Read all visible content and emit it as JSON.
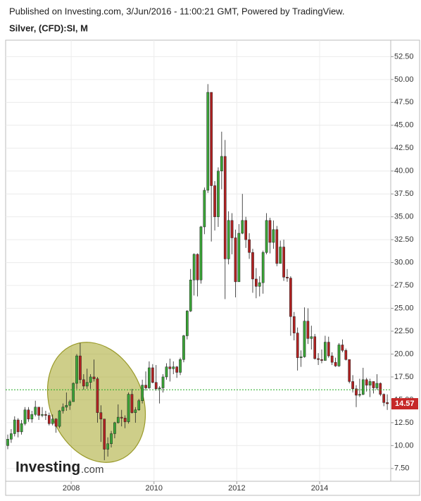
{
  "header": {
    "published": "Published on Investing.com, 3/Jun/2016 - 11:00:21 GMT, Powered by TradingView.",
    "instrument": "Silver, (CFD):SI, M"
  },
  "chart_data": {
    "type": "candlestick",
    "categories": [
      null,
      null,
      null,
      null,
      null,
      null,
      null,
      null,
      null,
      null,
      null,
      null,
      null,
      null,
      null,
      null,
      null,
      null,
      null,
      "2008",
      null,
      null,
      null,
      null,
      null,
      null,
      null,
      null,
      null,
      null,
      null,
      null,
      null,
      null,
      null,
      null,
      null,
      null,
      null,
      null,
      null,
      null,
      null,
      "2010",
      null,
      null,
      null,
      null,
      null,
      null,
      null,
      null,
      null,
      null,
      null,
      null,
      null,
      null,
      null,
      null,
      null,
      null,
      null,
      null,
      null,
      null,
      null,
      "2012",
      null,
      null,
      null,
      null,
      null,
      null,
      null,
      null,
      null,
      null,
      null,
      null,
      null,
      null,
      null,
      null,
      null,
      null,
      null,
      null,
      null,
      null,
      null,
      "2014",
      null,
      null,
      null,
      null,
      null,
      null,
      null,
      null,
      null,
      null,
      null,
      null,
      null,
      null,
      null,
      null,
      null,
      null,
      null
    ],
    "open": [
      10.0,
      10.7,
      11.3,
      12.8,
      11.5,
      12.4,
      13.9,
      12.9,
      13.4,
      14.2,
      13.3,
      13.4,
      13.3,
      12.4,
      12.9,
      12.1,
      13.8,
      14.2,
      14.4,
      14.8,
      16.8,
      19.8,
      17.2,
      16.5,
      16.9,
      17.5,
      17.3,
      13.6,
      12.9,
      9.6,
      10.2,
      11.3,
      12.5,
      13.1,
      13.0,
      12.6,
      15.6,
      13.6,
      13.9,
      14.9,
      16.6,
      16.3,
      18.5,
      16.9,
      16.2,
      16.3,
      17.5,
      18.6,
      18.4,
      18.6,
      18.0,
      19.4,
      22.0,
      24.7,
      28.1,
      30.9,
      28.1,
      33.9,
      37.9,
      48.6,
      38.4,
      35.0,
      40.0,
      41.6,
      30.4,
      34.6,
      32.7,
      27.9,
      33.2,
      34.6,
      32.5,
      31.1,
      28.2,
      27.4,
      27.8,
      31.1,
      34.6,
      32.2,
      33.6,
      29.9,
      31.7,
      28.4,
      28.3,
      24.1,
      22.3,
      19.6,
      19.7,
      23.6,
      21.7,
      21.9,
      19.5,
      19.4,
      19.3,
      21.3,
      19.8,
      19.1,
      18.7,
      21.0,
      20.4,
      19.4,
      17.0,
      16.2,
      15.5,
      15.6,
      17.2,
      16.6,
      17.0,
      16.3,
      16.8,
      15.6,
      14.7
    ],
    "high": [
      11.2,
      11.8,
      13.2,
      13.0,
      12.8,
      14.2,
      14.2,
      13.8,
      14.9,
      14.2,
      14.2,
      13.8,
      13.6,
      13.4,
      13.0,
      13.9,
      14.6,
      15.8,
      15.0,
      16.9,
      20.0,
      21.2,
      17.8,
      18.4,
      17.8,
      19.4,
      17.5,
      14.4,
      12.9,
      10.9,
      11.6,
      12.6,
      14.5,
      13.9,
      13.3,
      15.8,
      16.2,
      14.2,
      15.1,
      17.2,
      18.1,
      19.2,
      18.9,
      18.8,
      16.5,
      17.8,
      19.0,
      19.5,
      19.2,
      18.7,
      19.6,
      22.1,
      24.8,
      29.3,
      31.0,
      31.0,
      34.0,
      38.2,
      49.5,
      48.6,
      38.9,
      40.4,
      44.3,
      43.4,
      35.6,
      35.4,
      33.6,
      34.2,
      37.5,
      35.0,
      33.2,
      31.5,
      29.4,
      28.5,
      31.3,
      35.4,
      34.9,
      34.6,
      34.0,
      32.4,
      32.5,
      29.3,
      28.5,
      24.6,
      22.9,
      20.4,
      25.1,
      25.0,
      23.1,
      22.2,
      20.1,
      20.5,
      22.0,
      21.9,
      20.2,
      19.6,
      21.2,
      21.6,
      20.6,
      19.4,
      17.7,
      16.6,
      17.3,
      18.5,
      17.4,
      17.3,
      17.0,
      17.8,
      16.9,
      15.7,
      15.6
    ],
    "low": [
      9.6,
      10.3,
      11.0,
      10.9,
      11.2,
      12.2,
      12.6,
      12.5,
      13.2,
      12.8,
      13.1,
      12.8,
      12.2,
      12.2,
      11.4,
      11.9,
      13.5,
      13.8,
      13.9,
      14.8,
      16.2,
      16.8,
      16.1,
      16.2,
      16.2,
      17.0,
      12.5,
      10.4,
      8.4,
      8.8,
      9.8,
      10.8,
      12.4,
      12.1,
      11.9,
      12.4,
      13.5,
      12.5,
      13.8,
      14.6,
      16.0,
      16.2,
      16.8,
      16.0,
      14.6,
      15.8,
      17.2,
      17.0,
      17.8,
      17.4,
      17.7,
      19.1,
      21.6,
      24.6,
      26.4,
      26.3,
      27.7,
      33.1,
      37.6,
      32.3,
      33.5,
      33.9,
      38.0,
      26.0,
      29.8,
      30.9,
      26.2,
      27.9,
      33.1,
      31.6,
      30.4,
      26.7,
      26.1,
      26.3,
      26.6,
      30.9,
      31.0,
      31.5,
      29.6,
      29.9,
      28.0,
      27.9,
      22.0,
      21.5,
      18.2,
      18.6,
      19.6,
      21.1,
      20.5,
      19.4,
      18.8,
      19.0,
      19.3,
      19.6,
      18.8,
      18.6,
      18.6,
      20.2,
      19.3,
      16.8,
      15.8,
      14.2,
      15.3,
      15.5,
      15.9,
      15.3,
      15.7,
      16.1,
      15.4,
      14.3,
      13.9
    ],
    "close": [
      10.7,
      11.3,
      12.8,
      11.5,
      12.4,
      13.9,
      12.9,
      13.4,
      14.2,
      13.3,
      13.4,
      13.3,
      12.4,
      12.9,
      12.1,
      13.8,
      14.2,
      14.4,
      14.8,
      16.8,
      19.8,
      17.2,
      16.5,
      16.9,
      17.5,
      17.3,
      13.6,
      12.9,
      9.6,
      10.2,
      11.3,
      12.5,
      13.1,
      13.0,
      12.6,
      15.6,
      13.6,
      13.9,
      14.9,
      16.6,
      16.3,
      18.5,
      16.9,
      16.2,
      16.3,
      17.5,
      18.6,
      18.4,
      18.6,
      18.0,
      19.4,
      22.0,
      24.7,
      28.1,
      30.9,
      28.1,
      33.9,
      37.9,
      48.6,
      38.4,
      35.0,
      40.0,
      41.6,
      30.4,
      34.6,
      32.7,
      27.9,
      33.2,
      34.6,
      32.5,
      31.1,
      28.2,
      27.4,
      27.8,
      31.1,
      34.6,
      32.2,
      33.6,
      29.9,
      31.7,
      28.4,
      28.3,
      24.1,
      22.3,
      19.6,
      19.7,
      23.6,
      21.7,
      21.9,
      19.5,
      19.4,
      19.3,
      21.3,
      19.8,
      19.1,
      18.7,
      21.0,
      20.4,
      19.4,
      17.0,
      16.2,
      15.5,
      15.6,
      17.2,
      16.6,
      17.0,
      16.3,
      16.8,
      15.6,
      14.7,
      14.57
    ],
    "up_color": "#3aa537",
    "down_color": "#b22222",
    "last_price": 14.57,
    "last_price_color": "#c62828",
    "reference_line": 16.1,
    "reference_color": "#22aa22",
    "ylim": [
      6.1,
      54.3
    ],
    "yticks": [
      {
        "value": 7.5,
        "label": "7.50"
      },
      {
        "value": 10,
        "label": "10.00"
      },
      {
        "value": 12.5,
        "label": "12.50"
      },
      {
        "value": 15,
        "label": "15.00"
      },
      {
        "value": 17.5,
        "label": "17.50"
      },
      {
        "value": 20,
        "label": "20.00"
      },
      {
        "value": 22.5,
        "label": "22.50"
      },
      {
        "value": 25,
        "label": "25.00"
      },
      {
        "value": 27.5,
        "label": "27.50"
      },
      {
        "value": 30,
        "label": "30.00"
      },
      {
        "value": 32.5,
        "label": "32.50"
      },
      {
        "value": 35,
        "label": "35.00"
      },
      {
        "value": 37.5,
        "label": "37.50"
      },
      {
        "value": 40,
        "label": "40.00"
      },
      {
        "value": 42.5,
        "label": "42.50"
      },
      {
        "value": 45,
        "label": "45.00"
      },
      {
        "value": 47.5,
        "label": "47.50"
      },
      {
        "value": 50,
        "label": "50.00"
      },
      {
        "value": 52.5,
        "label": "52.50"
      }
    ],
    "grid": true,
    "watermark": {
      "brand": "Investing",
      "suffix": ".com"
    }
  }
}
